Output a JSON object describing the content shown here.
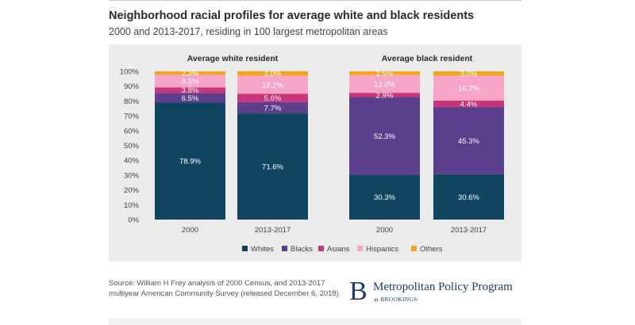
{
  "header": {
    "title": "Neighborhood racial profiles for average white and black residents",
    "subtitle": "2000 and 2013-2017, residing in 100 largest metropolitan areas"
  },
  "source": "Source: William H Frey analysis of 2000 Census, and 2013-2017 multiyear American Community Survey (released December 6, 2018)",
  "logo": {
    "mark": "B",
    "name": "Metropolitan Policy Program",
    "sub": "at BROOKINGS"
  },
  "colors": {
    "Whites": "#0f4560",
    "Blacks": "#5b3f8c",
    "Asians": "#c8357a",
    "Hispanics": "#f6a5c8",
    "Others": "#f2a51f"
  },
  "chart_data": {
    "type": "bar",
    "stacked": true,
    "ylim": [
      0,
      100
    ],
    "yticks": [
      "0%",
      "10%",
      "20%",
      "30%",
      "40%",
      "50%",
      "60%",
      "70%",
      "80%",
      "90%",
      "100%"
    ],
    "panels": [
      {
        "title": "Average white resident",
        "categories": [
          "2000",
          "2013-2017"
        ]
      },
      {
        "title": "Average black resident",
        "categories": [
          "2000",
          "2013-2017"
        ]
      }
    ],
    "series": [
      {
        "name": "Whites",
        "values": [
          78.9,
          71.6,
          30.3,
          30.6
        ],
        "labels": [
          "78.9%",
          "71.6%",
          "30.3%",
          "30.6%"
        ]
      },
      {
        "name": "Blacks",
        "values": [
          6.5,
          7.7,
          52.3,
          45.3
        ],
        "labels": [
          "6.5%",
          "7.7%",
          "52.3%",
          "45.3%"
        ]
      },
      {
        "name": "Asians",
        "values": [
          3.8,
          5.6,
          2.9,
          4.4
        ],
        "labels": [
          "3.8%",
          "5.6%",
          "2.9%",
          "4.4%"
        ]
      },
      {
        "name": "Hispanics",
        "values": [
          8.5,
          12.2,
          12.0,
          16.7
        ],
        "labels": [
          "8.5%",
          "12.2%",
          "12.0%",
          "16.7%"
        ]
      },
      {
        "name": "Others",
        "values": [
          2.3,
          3.0,
          2.5,
          3.0
        ],
        "labels": [
          "2.3%",
          "3.0%",
          "2.5%",
          "3.0%"
        ]
      }
    ],
    "legend": [
      "Whites",
      "Blacks",
      "Asians",
      "Hispanics",
      "Others"
    ],
    "legend_position": "bottom",
    "grid": false
  }
}
